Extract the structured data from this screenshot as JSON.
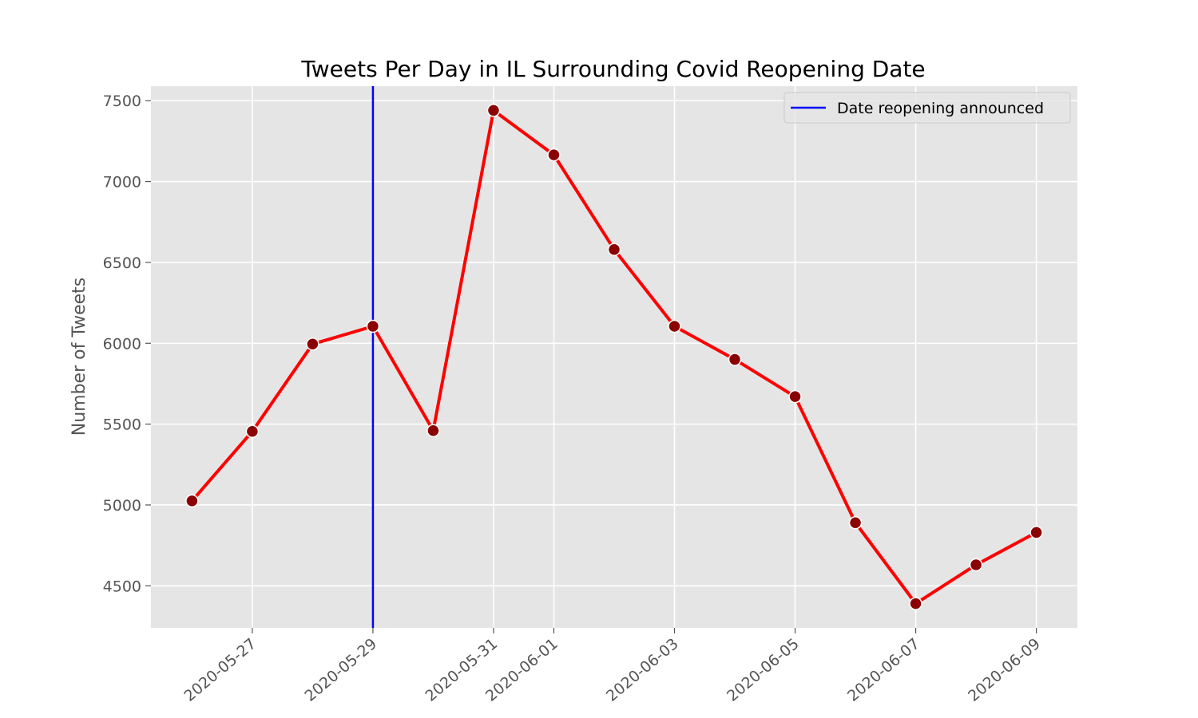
{
  "chart_data": {
    "type": "line",
    "title": "Tweets Per Day in IL Surrounding Covid Reopening Date",
    "xlabel": "",
    "ylabel": "Number of Tweets",
    "x": [
      "2020-05-26",
      "2020-05-27",
      "2020-05-28",
      "2020-05-29",
      "2020-05-30",
      "2020-05-31",
      "2020-06-01",
      "2020-06-02",
      "2020-06-03",
      "2020-06-04",
      "2020-06-05",
      "2020-06-06",
      "2020-06-07",
      "2020-06-08",
      "2020-06-09"
    ],
    "series": [
      {
        "values": [
          5025,
          5455,
          5995,
          6105,
          5460,
          7440,
          7165,
          6580,
          6105,
          5900,
          5670,
          4890,
          4390,
          4630,
          4830
        ],
        "color": "#ff0000",
        "marker_color": "#8b0000",
        "marker_edge_color": "#ffffff"
      }
    ],
    "xticks": [
      "2020-05-27",
      "2020-05-29",
      "2020-05-31",
      "2020-06-01",
      "2020-06-03",
      "2020-06-05",
      "2020-06-07",
      "2020-06-09"
    ],
    "yticks": [
      4500,
      5000,
      5500,
      6000,
      6500,
      7000,
      7500
    ],
    "xlim": [
      "2020-05-25T07:40",
      "2020-06-09T16:20"
    ],
    "ylim": [
      4240,
      7590
    ],
    "vline": {
      "x": "2020-05-29",
      "label": "Date reopening announced",
      "color": "#0000ff"
    },
    "legend": {
      "position": "top-right",
      "entries": [
        "Date reopening announced"
      ]
    },
    "grid": true,
    "plot_background": "#e5e5e5",
    "grid_color": "#ffffff"
  }
}
